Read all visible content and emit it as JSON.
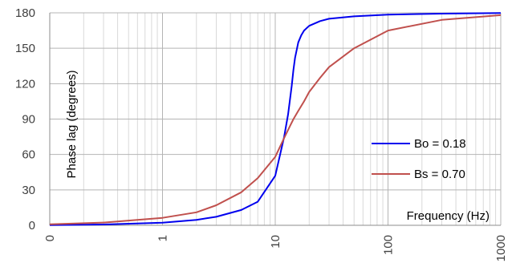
{
  "chart_data": {
    "type": "line",
    "xlabel": "Frequency (Hz)",
    "ylabel": "Phase lag (degrees)",
    "x_scale": "log",
    "x_tick_labels": [
      "0",
      "1",
      "10",
      "100",
      "1000"
    ],
    "y_ticks": [
      0,
      30,
      60,
      90,
      120,
      150,
      180
    ],
    "ylim": [
      0,
      180
    ],
    "grid": true,
    "legend_position": "right",
    "series": [
      {
        "name": "Bo = 0.18",
        "color": "#0000ee",
        "x": [
          0.1,
          0.3,
          1,
          2,
          3,
          5,
          7,
          10,
          12,
          13,
          14,
          14.5,
          15,
          16,
          17,
          18,
          20,
          25,
          30,
          50,
          100,
          300,
          1000
        ],
        "y": [
          0.2,
          0.7,
          2.2,
          4.6,
          7.2,
          13,
          20,
          42,
          75,
          94,
          118,
          132,
          142,
          155,
          161,
          165,
          169,
          173,
          175,
          177,
          178.5,
          179.3,
          179.8
        ]
      },
      {
        "name": "Bs = 0.70",
        "color": "#c0504d",
        "x": [
          0.1,
          0.3,
          1,
          2,
          3,
          5,
          7,
          10,
          12,
          13.5,
          14.5,
          16,
          18,
          20,
          25,
          30,
          50,
          100,
          300,
          1000
        ],
        "y": [
          0.8,
          2.3,
          6.3,
          11,
          17,
          28,
          40,
          58,
          74,
          84,
          90,
          97,
          105,
          113,
          125,
          134,
          150,
          165,
          174,
          178
        ]
      }
    ]
  }
}
